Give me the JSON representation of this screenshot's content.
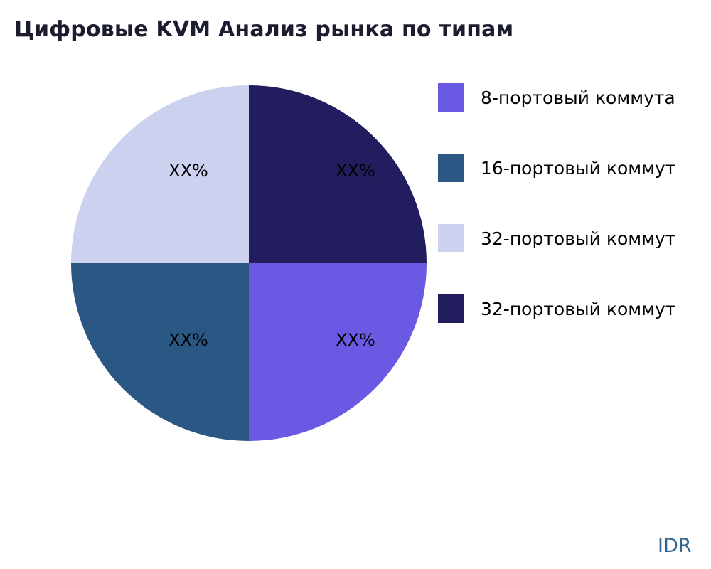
{
  "title": "Цифровые KVM Анализ рынка по типам",
  "watermark": "IDR",
  "chart_data": {
    "type": "pie",
    "title": "Цифровые KVM Анализ рынка по типам",
    "legend_position": "right",
    "start_angle_deg": 90,
    "direction": "clockwise",
    "labels": [
      "8-портовый коммута",
      "16-портовый коммут",
      "32-портовый коммут",
      "32-портовый коммут"
    ],
    "values": [
      25,
      25,
      25,
      25
    ],
    "slice_text": [
      "XX%",
      "XX%",
      "XX%",
      "XX%"
    ],
    "colors": [
      "#6a5ae3",
      "#2a5783",
      "#cdd1f0",
      "#211d5e"
    ]
  }
}
